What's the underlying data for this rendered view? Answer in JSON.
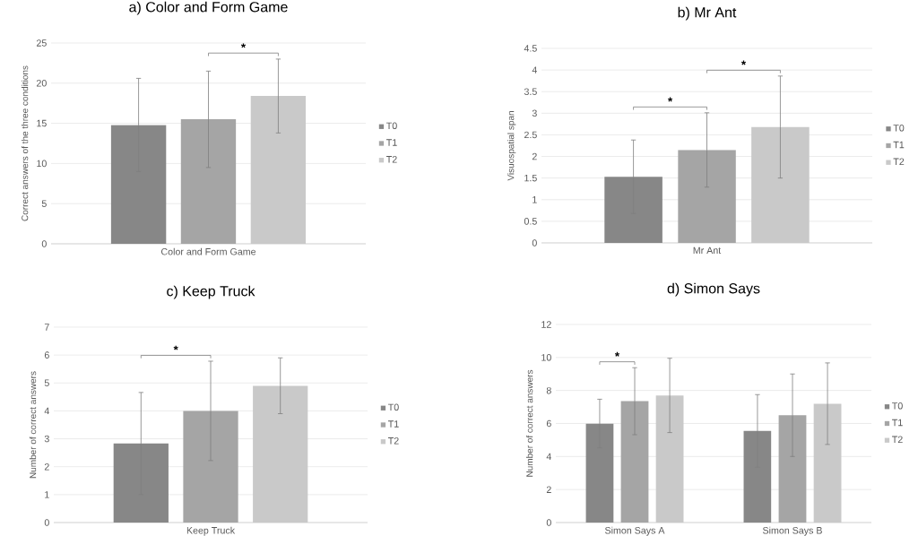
{
  "chart_data": [
    {
      "type": "bar",
      "title": "a) Color and Form Game",
      "ylabel": "Correct answers of the three conditions",
      "categories": [
        "Color and Form Game"
      ],
      "series": [
        {
          "name": "T0",
          "color": "#878787",
          "values": [
            14.8
          ],
          "errors": [
            5.8
          ]
        },
        {
          "name": "T1",
          "color": "#a5a5a5",
          "values": [
            15.5
          ],
          "errors": [
            6.0
          ]
        },
        {
          "name": "T2",
          "color": "#c9c9c9",
          "values": [
            18.4
          ],
          "errors": [
            4.6
          ]
        }
      ],
      "ylim": [
        0,
        25
      ],
      "yticks": [
        0,
        5,
        10,
        15,
        20,
        25
      ],
      "grid": "y",
      "legend": "right",
      "annotations": [
        "*"
      ]
    },
    {
      "type": "bar",
      "title": "b) Mr Ant",
      "ylabel": "Visuospatial span",
      "categories": [
        "Mr Ant"
      ],
      "series": [
        {
          "name": "T0",
          "color": "#878787",
          "values": [
            1.53
          ],
          "errors": [
            0.85
          ]
        },
        {
          "name": "T1",
          "color": "#a5a5a5",
          "values": [
            2.15
          ],
          "errors": [
            0.86
          ]
        },
        {
          "name": "T2",
          "color": "#c9c9c9",
          "values": [
            2.68
          ],
          "errors": [
            1.18
          ]
        }
      ],
      "ylim": [
        0,
        4.5
      ],
      "yticks": [
        0,
        0.5,
        1,
        1.5,
        2,
        2.5,
        3,
        3.5,
        4,
        4.5
      ],
      "grid": "y",
      "legend": "right",
      "annotations": [
        "*",
        "*"
      ]
    },
    {
      "type": "bar",
      "title": "c) Keep Truck",
      "ylabel": "Number of correct answers",
      "categories": [
        "Keep Truck"
      ],
      "series": [
        {
          "name": "T0",
          "color": "#878787",
          "values": [
            2.83
          ],
          "errors": [
            1.83
          ]
        },
        {
          "name": "T1",
          "color": "#a5a5a5",
          "values": [
            4.0
          ],
          "errors": [
            1.78
          ]
        },
        {
          "name": "T2",
          "color": "#c9c9c9",
          "values": [
            4.9
          ],
          "errors": [
            1.0
          ]
        }
      ],
      "ylim": [
        0,
        7
      ],
      "yticks": [
        0,
        1,
        2,
        3,
        4,
        5,
        6,
        7
      ],
      "grid": "y",
      "legend": "right",
      "annotations": [
        "*"
      ]
    },
    {
      "type": "bar",
      "title": "d) Simon Says",
      "ylabel": "Number of correct answers",
      "categories": [
        "Simon Says A",
        "Simon Says B"
      ],
      "series": [
        {
          "name": "T0",
          "color": "#878787",
          "values": [
            6.0,
            5.55
          ],
          "errors": [
            1.47,
            2.2
          ]
        },
        {
          "name": "T1",
          "color": "#a5a5a5",
          "values": [
            7.35,
            6.5
          ],
          "errors": [
            2.03,
            2.5
          ]
        },
        {
          "name": "T2",
          "color": "#c9c9c9",
          "values": [
            7.7,
            7.2
          ],
          "errors": [
            2.25,
            2.47
          ]
        }
      ],
      "ylim": [
        0,
        12
      ],
      "yticks": [
        0,
        2,
        4,
        6,
        8,
        10,
        12
      ],
      "grid": "y",
      "legend": "right",
      "annotations": [
        "*"
      ]
    }
  ]
}
